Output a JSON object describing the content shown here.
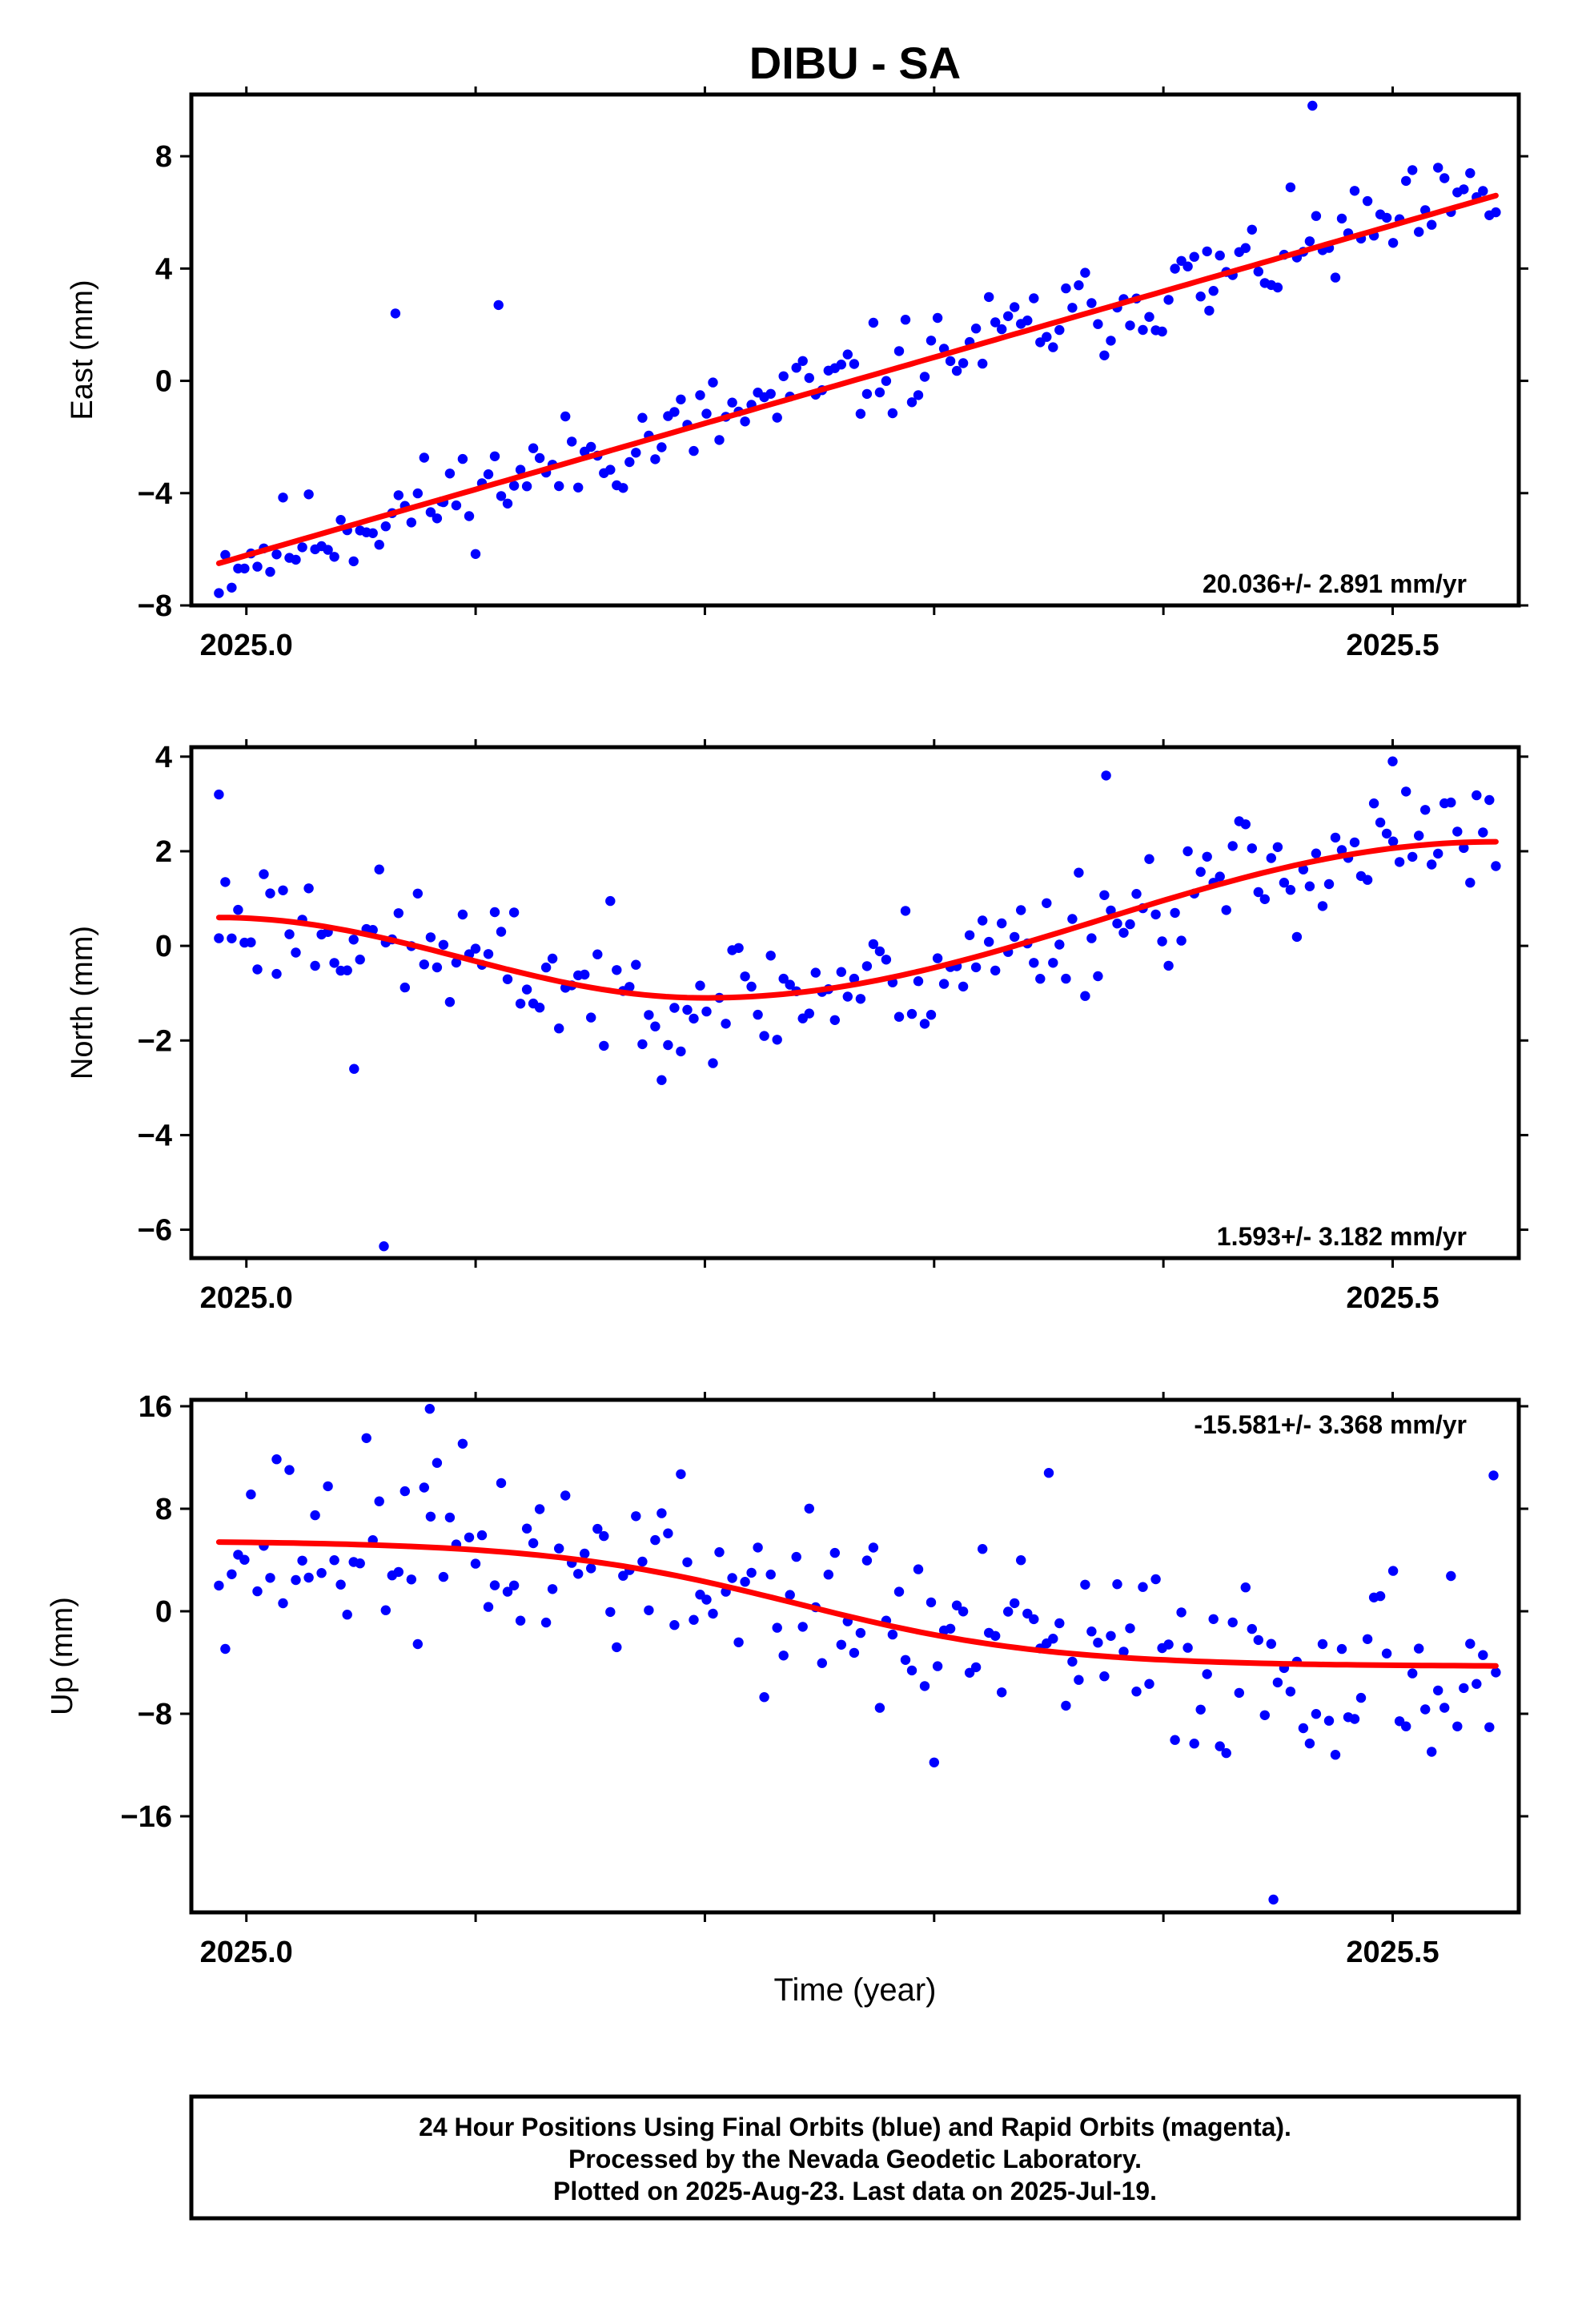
{
  "chart_data": {
    "type": "scatter",
    "title": "DIBU - SA",
    "xlabel": "Time (year)",
    "xlim": [
      2024.976,
      2025.555
    ],
    "x_ticks": [
      2025.0,
      2025.5
    ],
    "x_tick_labels": [
      "2025.0",
      "2025.5"
    ],
    "x_minor_ticks": [
      2025.1,
      2025.2,
      2025.3,
      2025.4
    ],
    "colors": {
      "points": "#0000ff",
      "fit": "#ff0000",
      "frame": "#000000"
    },
    "panels": [
      {
        "id": "east",
        "ylabel": "East (mm)",
        "ylim": [
          -8,
          10.2
        ],
        "y_ticks": [
          -8,
          -4,
          0,
          4,
          8
        ],
        "y_tick_labels": [
          "−8",
          "−4",
          "0",
          "4",
          "8"
        ],
        "rate_label": "20.036+/- 2.891 mm/yr",
        "rate_position": "bottom-right",
        "fit": {
          "start": -6.5,
          "end": 6.6,
          "shape": "linear"
        },
        "noise": 1.05,
        "seed": 11,
        "outliers": [
          [
            2025.465,
            9.8
          ],
          [
            2025.11,
            2.7
          ],
          [
            2025.085,
            -4.3
          ],
          [
            2025.065,
            2.4
          ],
          [
            2025.42,
            2.5
          ]
        ]
      },
      {
        "id": "north",
        "ylabel": "North (mm)",
        "ylim": [
          -6.6,
          4.2
        ],
        "y_ticks": [
          -6,
          -4,
          -2,
          0,
          2,
          4
        ],
        "y_tick_labels": [
          "−6",
          "−4",
          "−2",
          "0",
          "2",
          "4"
        ],
        "rate_label": "1.593+/- 3.182 mm/yr",
        "rate_position": "bottom-right",
        "fit": {
          "start": 0.6,
          "end": 2.2,
          "min": -1.1,
          "minAt": 2025.2,
          "shape": "valley"
        },
        "noise": 0.85,
        "seed": 23,
        "outliers": [
          [
            2025.06,
            -6.35
          ],
          [
            2025.5,
            3.9
          ],
          [
            2024.988,
            3.2
          ],
          [
            2025.047,
            -2.6
          ],
          [
            2025.375,
            3.6
          ]
        ]
      },
      {
        "id": "up",
        "ylabel": "Up (mm)",
        "ylim": [
          -23.5,
          16.5
        ],
        "y_ticks": [
          -16,
          -8,
          0,
          8,
          16
        ],
        "y_tick_labels": [
          "−16",
          "−8",
          "0",
          "8",
          "16"
        ],
        "rate_label": "-15.581+/- 3.368 mm/yr",
        "rate_position": "top-right",
        "fit": {
          "start": 5.5,
          "end": -4.3,
          "shape": "sigmoid",
          "mid": 2025.24
        },
        "noise": 4.6,
        "seed": 37,
        "outliers": [
          [
            2025.448,
            -22.5
          ],
          [
            2025.08,
            15.8
          ],
          [
            2025.3,
            -11.8
          ],
          [
            2025.35,
            10.8
          ],
          [
            2025.544,
            10.6
          ]
        ]
      }
    ]
  },
  "footer": {
    "line1": "24 Hour Positions Using Final Orbits (blue) and Rapid Orbits (magenta).",
    "line2": "Processed by the Nevada Geodetic Laboratory.",
    "line3": "Plotted on 2025-Aug-23. Last data on 2025-Jul-19."
  }
}
